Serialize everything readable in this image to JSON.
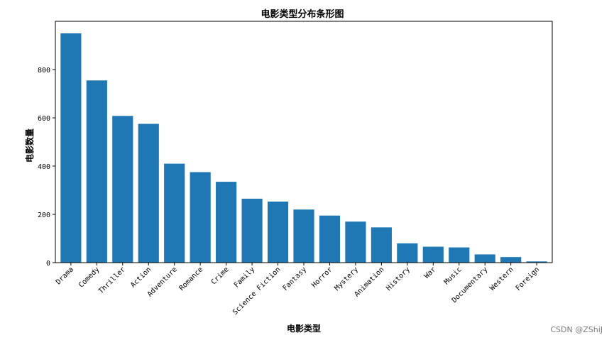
{
  "chart_data": {
    "type": "bar",
    "title": "电影类型分布条形图",
    "xlabel": "电影类型",
    "ylabel": "电影数量",
    "categories": [
      "Drama",
      "Comedy",
      "Thriller",
      "Action",
      "Adventure",
      "Romance",
      "Crime",
      "Family",
      "Science Fiction",
      "Fantasy",
      "Horror",
      "Mystery",
      "Animation",
      "History",
      "War",
      "Music",
      "Documentary",
      "Western",
      "Foreign"
    ],
    "values": [
      950,
      755,
      608,
      575,
      410,
      375,
      335,
      265,
      253,
      220,
      195,
      170,
      146,
      80,
      66,
      63,
      34,
      23,
      5
    ],
    "ylim": [
      0,
      1000
    ],
    "yticks": [
      0,
      200,
      400,
      600,
      800
    ],
    "bar_color": "#1f77b4",
    "grid": false
  },
  "watermark": "CSDN @ZShiJ"
}
